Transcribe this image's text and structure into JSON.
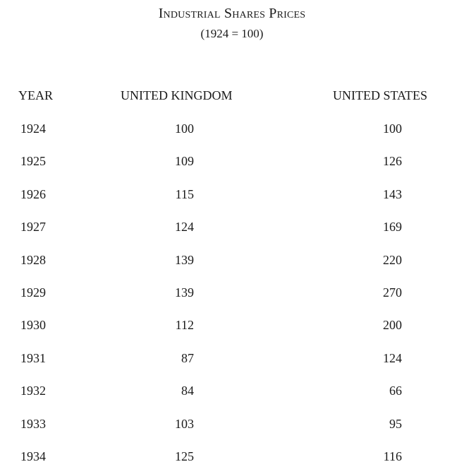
{
  "title": "Industrial Shares Prices",
  "subtitle": "(1924 = 100)",
  "table": {
    "headers": [
      "YEAR",
      "UNITED KINGDOM",
      "UNITED STATES"
    ],
    "rows": [
      {
        "year": "1924",
        "uk": "100",
        "us": "100"
      },
      {
        "year": "1925",
        "uk": "109",
        "us": "126"
      },
      {
        "year": "1926",
        "uk": "115",
        "us": "143"
      },
      {
        "year": "1927",
        "uk": "124",
        "us": "169"
      },
      {
        "year": "1928",
        "uk": "139",
        "us": "220"
      },
      {
        "year": "1929",
        "uk": "139",
        "us": "270"
      },
      {
        "year": "1930",
        "uk": "112",
        "us": "200"
      },
      {
        "year": "1931",
        "uk": "87",
        "us": "124"
      },
      {
        "year": "1932",
        "uk": "84",
        "us": "66"
      },
      {
        "year": "1933",
        "uk": "103",
        "us": "95"
      },
      {
        "year": "1934",
        "uk": "125",
        "us": "116"
      }
    ]
  }
}
